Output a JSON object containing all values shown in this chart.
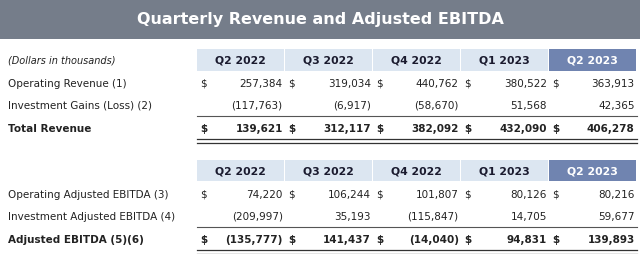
{
  "title": "Quarterly Revenue and Adjusted EBITDA",
  "title_bg": "#757d8a",
  "title_color": "#ffffff",
  "header_bg_light": "#dce6f1",
  "header_bg_dark": "#7084b0",
  "header_text_light": "#1a1a2e",
  "header_text_dark": "#ffffff",
  "bg_color": "#ffffff",
  "columns": [
    "Q2 2022",
    "Q3 2022",
    "Q4 2022",
    "Q1 2023",
    "Q2 2023"
  ],
  "dollars_label": "(Dollars in thousands)",
  "table1": {
    "row_labels": [
      "Operating Revenue (1)",
      "Investment Gains (Loss) (2)",
      "Total Revenue"
    ],
    "row_label_bold": [
      false,
      false,
      true
    ],
    "data": [
      [
        "257,384",
        "319,034",
        "440,762",
        "380,522",
        "363,913"
      ],
      [
        "(117,763)",
        "(6,917)",
        "(58,670)",
        "51,568",
        "42,365"
      ],
      [
        "139,621",
        "312,117",
        "382,092",
        "432,090",
        "406,278"
      ]
    ],
    "dollar_signs": [
      [
        "$",
        "$",
        "$",
        "$",
        "$"
      ],
      [
        "",
        "",
        "",
        "",
        ""
      ],
      [
        "$",
        "$",
        "$",
        "$",
        "$"
      ]
    ]
  },
  "table2": {
    "row_labels": [
      "Operating Adjusted EBITDA (3)",
      "Investment Adjusted EBITDA (4)",
      "Adjusted EBITDA (5)(6)"
    ],
    "row_label_bold": [
      false,
      false,
      true
    ],
    "data": [
      [
        "74,220",
        "106,244",
        "101,807",
        "80,126",
        "80,216"
      ],
      [
        "(209,997)",
        "35,193",
        "(115,847)",
        "14,705",
        "59,677"
      ],
      [
        "(135,777)",
        "141,437",
        "(14,040)",
        "94,831",
        "139,893"
      ]
    ],
    "dollar_signs": [
      [
        "$",
        "$",
        "$",
        "$",
        "$"
      ],
      [
        "",
        "",
        "",
        "",
        ""
      ],
      [
        "$",
        "$",
        "$",
        "$",
        "$"
      ]
    ]
  }
}
